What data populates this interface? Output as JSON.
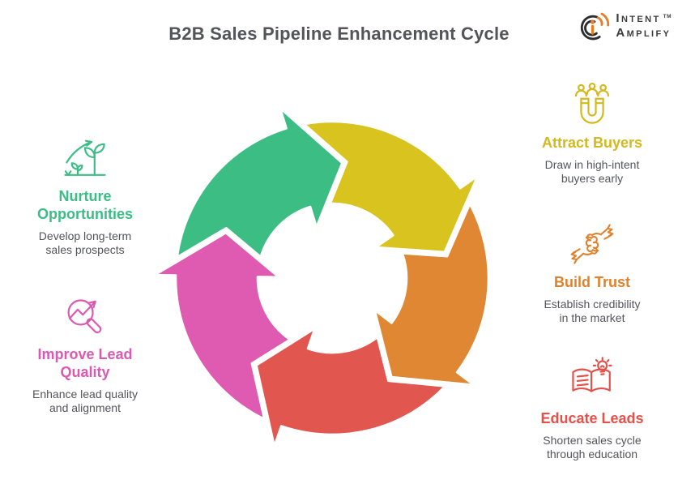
{
  "page": {
    "background": "#ffffff",
    "text_color": "#54555a",
    "title_color": "#54555a"
  },
  "title": "B2B Sales Pipeline Enhancement Cycle",
  "logo": {
    "name": "Intent Amplify",
    "line1": "Intent",
    "line2": "Amplify",
    "trademark": "TM",
    "accent_color": "#e87e23",
    "arc_color": "#2e2e30",
    "text_color": "#3c3c3e"
  },
  "chart_data": {
    "type": "cycle",
    "direction": "clockwise",
    "center_hole": true,
    "stages": [
      {
        "label": "Attract Buyers",
        "color": "#d8c31f",
        "tip_angle_deg": 77
      },
      {
        "label": "Build Trust",
        "color": "#df8733",
        "tip_angle_deg": 149
      },
      {
        "label": "Educate Leads",
        "color": "#e25650",
        "tip_angle_deg": 221
      },
      {
        "label": "Improve Lead Quality",
        "color": "#de5bb1",
        "tip_angle_deg": 293
      },
      {
        "label": "Nurture Opportunities",
        "color": "#3cbd83",
        "tip_angle_deg": 5
      }
    ]
  },
  "items": {
    "attract": {
      "heading": "Attract Buyers",
      "desc1": "Draw in high-intent",
      "desc2": "buyers early",
      "color": "#d3b91d",
      "icon": "magnet-attracting-people"
    },
    "trust": {
      "heading": "Build Trust",
      "desc1": "Establish credibility",
      "desc2": "in the market",
      "color": "#e0812d",
      "icon": "handshake"
    },
    "educate": {
      "heading": "Educate Leads",
      "desc1": "Shorten sales cycle",
      "desc2": "through education",
      "color": "#e4514b",
      "icon": "open-book-lightbulb"
    },
    "nurture": {
      "heading1": "Nurture",
      "heading2": "Opportunities",
      "desc1": "Develop long-term",
      "desc2": "sales prospects",
      "color": "#3cbd85",
      "icon": "growing-plant-arrow"
    },
    "improve": {
      "heading1": "Improve Lead",
      "heading2": "Quality",
      "desc1": "Enhance lead quality",
      "desc2": "and alignment",
      "color": "#de58b2",
      "icon": "magnifier-trend-arrow"
    }
  }
}
